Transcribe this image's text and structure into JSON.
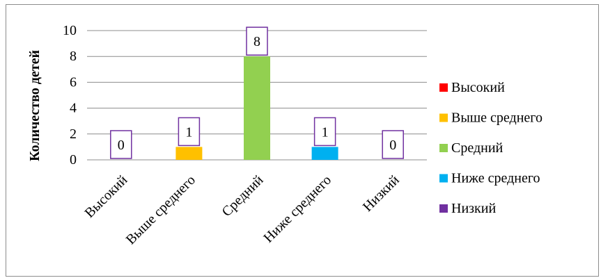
{
  "chart_data": {
    "type": "bar",
    "categories": [
      "Высокий",
      "Выше среднего",
      "Средний",
      "Ниже среднего",
      "Низкий"
    ],
    "values": [
      0,
      1,
      8,
      1,
      0
    ],
    "colors": [
      "#ff0000",
      "#ffc000",
      "#92d050",
      "#00b0f0",
      "#7030a0"
    ],
    "ylabel": "Количество детей",
    "xlabel": "",
    "ylim": [
      0,
      10
    ],
    "yticks": [
      0,
      2,
      4,
      6,
      8,
      10
    ],
    "grid": true,
    "legend_position": "right",
    "data_label_border_color": "#7030a0",
    "legend": [
      "Высокий",
      "Выше среднего",
      "Средний",
      "Ниже среднего",
      "Низкий"
    ]
  }
}
